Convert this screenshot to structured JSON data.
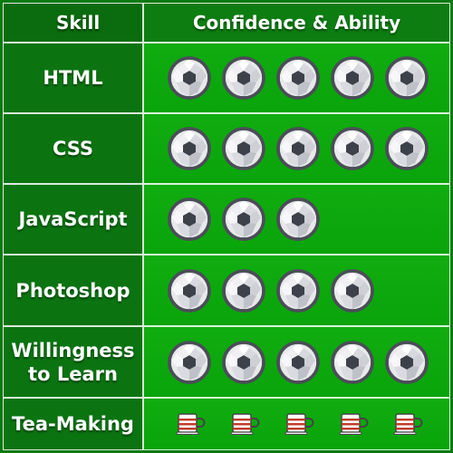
{
  "header": {
    "skill_label": "Skill",
    "rating_label": "Confidence & Ability"
  },
  "rows": [
    {
      "skill": "HTML",
      "rating": 5,
      "max": 5,
      "icon": "soccer-ball-icon"
    },
    {
      "skill": "CSS",
      "rating": 5,
      "max": 5,
      "icon": "soccer-ball-icon"
    },
    {
      "skill": "JavaScript",
      "rating": 3,
      "max": 5,
      "icon": "soccer-ball-icon"
    },
    {
      "skill": "Photoshop",
      "rating": 4,
      "max": 5,
      "icon": "soccer-ball-icon"
    },
    {
      "skill": "Willingness to Learn",
      "rating": 5,
      "max": 5,
      "icon": "soccer-ball-icon"
    },
    {
      "skill": "Tea-Making",
      "rating": 5,
      "max": 5,
      "icon": "tea-cup-icon"
    }
  ],
  "colors": {
    "background": "#0a7a12",
    "header_bg": "#0b6b0f",
    "skill_bg": "#0b7411",
    "rating_bg": "#0aa40b",
    "text": "#ffffff",
    "cup_stripe": "#c0392b"
  }
}
